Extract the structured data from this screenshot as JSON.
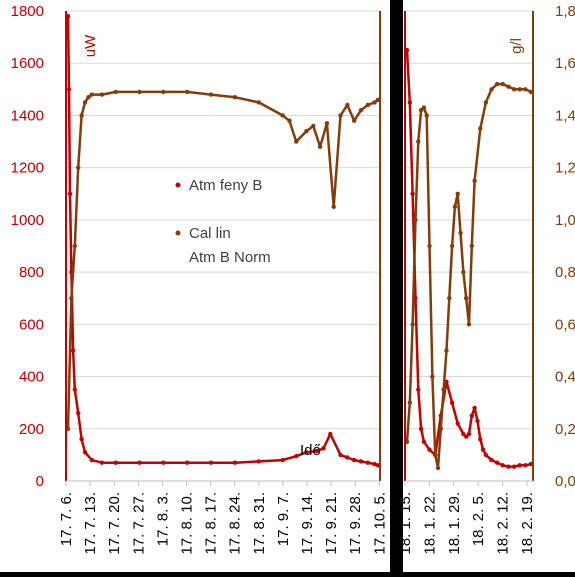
{
  "chart_data": [
    {
      "type": "scatter",
      "panel": "left",
      "y_left_label": "uW",
      "y_left_ticks": [
        "0",
        "200",
        "400",
        "600",
        "800",
        "1000",
        "1200",
        "1400",
        "1600",
        "1800"
      ],
      "ylim_left": [
        0,
        1800
      ],
      "x_ticks": [
        "17. 7. 6.",
        "17. 7. 13.",
        "17. 7. 20.",
        "17. 7. 27.",
        "17. 8. 3.",
        "17. 8. 10.",
        "17. 8. 17.",
        "17. 8. 24.",
        "17. 8. 31.",
        "17. 9. 7.",
        "17. 9. 14.",
        "17. 9. 21.",
        "17. 9. 28.",
        "17. 10. 5."
      ],
      "annotation": "Idő",
      "legend_position": "middle",
      "series": [
        {
          "name": "Atm feny B",
          "color": "#c00000",
          "axis": "left",
          "x": [
            0,
            0.3,
            0.6,
            1,
            1.5,
            2,
            3,
            4,
            5,
            7,
            10,
            14,
            21,
            28,
            35,
            42,
            49,
            56,
            63,
            67,
            70,
            73,
            75,
            77,
            80,
            82,
            84,
            86,
            88,
            90,
            91
          ],
          "y": [
            1780,
            1500,
            1100,
            800,
            500,
            350,
            260,
            160,
            110,
            80,
            70,
            70,
            70,
            70,
            70,
            70,
            70,
            75,
            80,
            95,
            110,
            115,
            125,
            180,
            100,
            90,
            80,
            75,
            70,
            65,
            60
          ]
        },
        {
          "name": "Cal lin Atm B Norm",
          "color": "#843c0c",
          "axis": "left",
          "x": [
            0,
            1,
            2,
            3,
            4,
            5,
            6,
            7,
            10,
            14,
            21,
            28,
            35,
            42,
            49,
            56,
            63,
            65,
            67,
            70,
            72,
            74,
            76,
            78,
            80,
            82,
            84,
            86,
            88,
            90,
            91
          ],
          "y": [
            200,
            700,
            900,
            1200,
            1400,
            1450,
            1470,
            1480,
            1480,
            1490,
            1490,
            1490,
            1490,
            1480,
            1470,
            1450,
            1400,
            1380,
            1300,
            1340,
            1360,
            1280,
            1370,
            1050,
            1400,
            1440,
            1380,
            1420,
            1440,
            1450,
            1460
          ]
        }
      ]
    },
    {
      "type": "scatter",
      "panel": "right",
      "y_right_label": "g/l",
      "y_right_ticks": [
        "0,0",
        "0,2",
        "0,4",
        "0,6",
        "0,8",
        "1,0",
        "1,2",
        "1,4",
        "1,6",
        "1,8"
      ],
      "ylim_right": [
        0,
        1.8
      ],
      "x_ticks": [
        "18. 1. 15.",
        "18. 1. 22.",
        "18. 1. 29.",
        "18. 2. 5.",
        "18. 2. 12.",
        "18. 2. 19."
      ],
      "series": [
        {
          "name": "Atm feny B",
          "color": "#c00000",
          "axis": "left",
          "x": [
            0,
            1,
            2,
            3,
            4,
            5,
            6,
            8,
            10,
            12,
            14,
            16,
            18,
            20,
            21,
            22,
            23,
            24,
            25,
            26,
            27,
            28,
            30,
            32,
            34,
            36,
            38,
            40,
            42,
            44
          ],
          "y": [
            1650,
            1450,
            1100,
            700,
            350,
            200,
            150,
            120,
            100,
            250,
            380,
            300,
            220,
            180,
            170,
            180,
            250,
            280,
            230,
            160,
            120,
            100,
            80,
            70,
            60,
            55,
            55,
            60,
            60,
            65
          ]
        },
        {
          "name": "Cal lin Atm B Norm",
          "color": "#843c0c",
          "axis": "right",
          "x": [
            0,
            1,
            2,
            3,
            4,
            5,
            6,
            7,
            8,
            9,
            10,
            11,
            12,
            13,
            14,
            15,
            16,
            17,
            18,
            19,
            20,
            21,
            22,
            23,
            24,
            26,
            28,
            30,
            32,
            34,
            36,
            38,
            40,
            42,
            44
          ],
          "y": [
            0.15,
            0.3,
            0.6,
            1.0,
            1.3,
            1.42,
            1.43,
            1.4,
            0.9,
            0.4,
            0.1,
            0.05,
            0.2,
            0.35,
            0.5,
            0.7,
            0.9,
            1.05,
            1.1,
            0.95,
            0.8,
            0.7,
            0.6,
            0.9,
            1.15,
            1.35,
            1.45,
            1.5,
            1.52,
            1.52,
            1.51,
            1.5,
            1.5,
            1.5,
            1.49
          ]
        }
      ]
    }
  ]
}
